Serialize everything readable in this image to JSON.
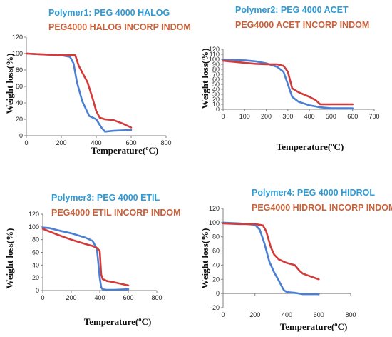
{
  "colors": {
    "series1": "#4a7fd4",
    "series2": "#d43a3a",
    "axis": "#808080"
  },
  "chart_data": [
    {
      "type": "line",
      "xlabel": "Temperature(ºC)",
      "ylabel": "Weight loss(%)",
      "xlim": [
        0,
        800
      ],
      "ylim": [
        0,
        120
      ],
      "xticks": [
        0,
        200,
        400,
        600,
        800
      ],
      "yticks": [
        0,
        20,
        40,
        60,
        80,
        100,
        120
      ],
      "grid": false,
      "series": [
        {
          "name": "Polymer1: PEG 4000 HALOG",
          "x": [
            0,
            100,
            200,
            250,
            270,
            290,
            320,
            360,
            400,
            430,
            450,
            500,
            600
          ],
          "y": [
            100,
            99,
            98,
            96,
            88,
            65,
            42,
            24,
            20,
            10,
            5,
            6,
            7
          ]
        },
        {
          "name": "PEG4000 HALOG INCORP INDOM",
          "x": [
            0,
            100,
            200,
            250,
            280,
            300,
            350,
            380,
            400,
            420,
            450,
            500,
            550,
            600
          ],
          "y": [
            100,
            99,
            98,
            98,
            98,
            85,
            65,
            45,
            30,
            22,
            20,
            19,
            15,
            10
          ]
        }
      ]
    },
    {
      "type": "line",
      "xlabel": "Temperature(ºC)",
      "ylabel": "Weight loss(%)",
      "xlim": [
        0,
        700
      ],
      "ylim": [
        0,
        120
      ],
      "xticks": [
        0,
        100,
        200,
        300,
        400,
        500,
        600,
        700
      ],
      "yticks": [
        0,
        10,
        20,
        30,
        40,
        50,
        60,
        70,
        80,
        90,
        100,
        110,
        120
      ],
      "grid": false,
      "series": [
        {
          "name": "Polymer2: PEG 4000 ACET",
          "x": [
            0,
            100,
            150,
            200,
            250,
            280,
            300,
            320,
            350,
            400,
            450,
            500,
            600
          ],
          "y": [
            99,
            98,
            96,
            92,
            85,
            75,
            50,
            25,
            15,
            8,
            4,
            2,
            2
          ]
        },
        {
          "name": "PEG4000 ACET INCORP INDOM",
          "x": [
            0,
            100,
            150,
            200,
            250,
            280,
            300,
            320,
            350,
            400,
            430,
            450,
            500,
            600
          ],
          "y": [
            97,
            93,
            91,
            90,
            90,
            87,
            75,
            42,
            34,
            25,
            18,
            10,
            10,
            10
          ]
        }
      ]
    },
    {
      "type": "line",
      "xlabel": "Temperature(ºC)",
      "ylabel": "Weight loss(%)",
      "xlim": [
        0,
        800
      ],
      "ylim": [
        0,
        120
      ],
      "xticks": [
        0,
        200,
        400,
        600,
        800
      ],
      "yticks": [
        0,
        20,
        40,
        60,
        80,
        100,
        120
      ],
      "grid": false,
      "series": [
        {
          "name": "Polymer3: PEG 4000 ETIL",
          "x": [
            0,
            50,
            100,
            200,
            300,
            350,
            380,
            400,
            410,
            420,
            450,
            500,
            600
          ],
          "y": [
            99,
            98,
            95,
            90,
            83,
            78,
            65,
            20,
            5,
            2,
            1,
            1,
            2
          ]
        },
        {
          "name": "PEG4000 ETIL INCORP INDOM",
          "x": [
            0,
            100,
            200,
            300,
            350,
            380,
            400,
            410,
            420,
            450,
            500,
            600
          ],
          "y": [
            97,
            88,
            80,
            73,
            70,
            67,
            62,
            25,
            18,
            15,
            13,
            8
          ]
        }
      ]
    },
    {
      "type": "line",
      "xlabel": "Temperature(ºC)",
      "ylabel": "Weight loss(%)",
      "xlim": [
        0,
        800
      ],
      "ylim": [
        -20,
        120
      ],
      "xticks": [
        0,
        200,
        400,
        600,
        800
      ],
      "yticks": [
        -20,
        0,
        20,
        40,
        60,
        80,
        100,
        120
      ],
      "grid": false,
      "series": [
        {
          "name": "Polymer4: PEG 4000 HIDROL",
          "x": [
            0,
            100,
            200,
            230,
            260,
            290,
            320,
            350,
            380,
            400,
            450,
            500,
            600
          ],
          "y": [
            100,
            99,
            97,
            90,
            70,
            45,
            30,
            18,
            5,
            2,
            1,
            -1,
            -1
          ]
        },
        {
          "name": "PEG4000 HIDROL INCORP INDOM",
          "x": [
            0,
            100,
            200,
            250,
            270,
            300,
            320,
            350,
            400,
            450,
            480,
            500,
            550,
            600
          ],
          "y": [
            99,
            98,
            98,
            96,
            88,
            65,
            55,
            48,
            43,
            40,
            32,
            28,
            24,
            20
          ]
        }
      ]
    }
  ]
}
